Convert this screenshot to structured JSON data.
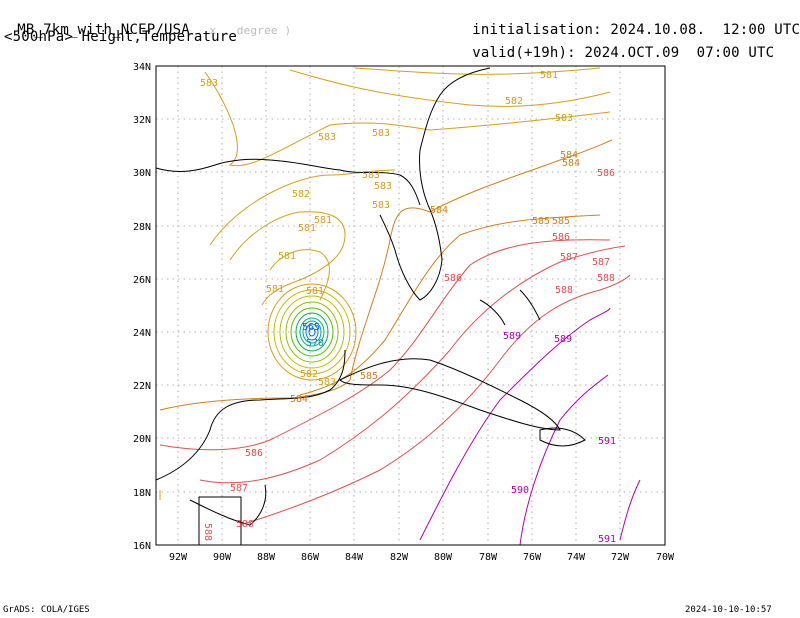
{
  "header": {
    "model": "MB_7km_with_NCEP/USA",
    "units": ". x . degree )",
    "product": "<500hPa> Height,Temperature",
    "init_label": "initialisation:",
    "init_value": "2024.10.08.  12:00 UTC",
    "valid_label": "valid(+19h):",
    "valid_value": "2024.OCT.09  07:00 UTC"
  },
  "footer": {
    "credit": "GrADS: COLA/IGES",
    "timestamp": "2024-10-10-10:57"
  },
  "map": {
    "lon_labels": [
      "92W",
      "90W",
      "88W",
      "86W",
      "84W",
      "82W",
      "80W",
      "78W",
      "76W",
      "74W",
      "72W",
      "70W"
    ],
    "lat_labels": [
      "34N",
      "32N",
      "30N",
      "28N",
      "26N",
      "24N",
      "22N",
      "20N",
      "18N",
      "16N"
    ],
    "contour_labels": [
      {
        "text": "581",
        "color": "#d4a017"
      },
      {
        "text": "582",
        "color": "#d4a017"
      },
      {
        "text": "583",
        "color": "#d4a017"
      },
      {
        "text": "584",
        "color": "#d0801a"
      },
      {
        "text": "585",
        "color": "#d0801a"
      },
      {
        "text": "586",
        "color": "#e05050"
      },
      {
        "text": "587",
        "color": "#e05050"
      },
      {
        "text": "588",
        "color": "#e05050"
      },
      {
        "text": "589",
        "color": "#b000b0"
      },
      {
        "text": "590",
        "color": "#b000b0"
      },
      {
        "text": "591",
        "color": "#b000b0"
      },
      {
        "text": "570",
        "color": "#00a0a0"
      },
      {
        "text": "565",
        "color": "#0060ff"
      }
    ]
  }
}
